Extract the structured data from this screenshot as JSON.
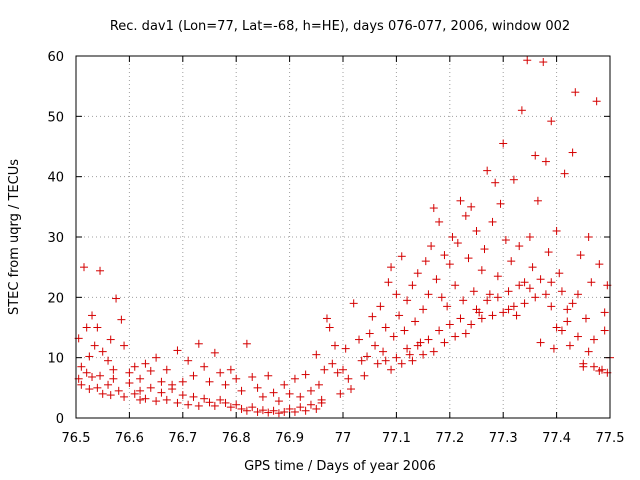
{
  "chart_data": {
    "type": "scatter",
    "title": "Rec. dav1 (Lon=77, Lat=-68, h=HE), days 076-077, 2006, window 002",
    "xlabel": "GPS time / Days of year 2006",
    "ylabel": "STEC from uqrg / TECUs",
    "xlim": [
      76.5,
      77.5
    ],
    "ylim": [
      0,
      60
    ],
    "xticks": [
      "76.5",
      "76.6",
      "76.7",
      "76.8",
      "76.9",
      "77",
      "77.1",
      "77.2",
      "77.3",
      "77.4",
      "77.5"
    ],
    "yticks": [
      "0",
      "10",
      "20",
      "30",
      "40",
      "50",
      "60"
    ],
    "grid": true,
    "marker": "plus",
    "color": "#d40000",
    "points": [
      [
        76.505,
        13.2
      ],
      [
        76.51,
        8.5
      ],
      [
        76.515,
        25.0
      ],
      [
        76.52,
        15.0
      ],
      [
        76.525,
        10.2
      ],
      [
        76.53,
        17.0
      ],
      [
        76.535,
        12.0
      ],
      [
        76.54,
        15.0
      ],
      [
        76.545,
        24.4
      ],
      [
        76.55,
        11.0
      ],
      [
        76.56,
        9.5
      ],
      [
        76.565,
        13.0
      ],
      [
        76.57,
        8.0
      ],
      [
        76.575,
        19.8
      ],
      [
        76.585,
        16.3
      ],
      [
        76.59,
        12.0
      ],
      [
        76.505,
        6.5
      ],
      [
        76.51,
        5.5
      ],
      [
        76.52,
        7.5
      ],
      [
        76.525,
        4.8
      ],
      [
        76.53,
        6.8
      ],
      [
        76.54,
        5.0
      ],
      [
        76.545,
        7.0
      ],
      [
        76.55,
        4.0
      ],
      [
        76.56,
        5.5
      ],
      [
        76.565,
        3.8
      ],
      [
        76.57,
        6.5
      ],
      [
        76.58,
        4.5
      ],
      [
        76.59,
        3.5
      ],
      [
        76.6,
        5.8
      ],
      [
        76.61,
        4.0
      ],
      [
        76.62,
        3.0
      ],
      [
        76.6,
        7.5
      ],
      [
        76.61,
        8.5
      ],
      [
        76.62,
        6.5
      ],
      [
        76.63,
        9.0
      ],
      [
        76.64,
        7.8
      ],
      [
        76.65,
        10.0
      ],
      [
        76.66,
        6.0
      ],
      [
        76.67,
        8.0
      ],
      [
        76.68,
        5.5
      ],
      [
        76.69,
        11.2
      ],
      [
        76.7,
        6.0
      ],
      [
        76.71,
        9.5
      ],
      [
        76.72,
        7.0
      ],
      [
        76.73,
        12.3
      ],
      [
        76.74,
        8.5
      ],
      [
        76.75,
        6.0
      ],
      [
        76.62,
        4.5
      ],
      [
        76.63,
        3.2
      ],
      [
        76.64,
        5.0
      ],
      [
        76.65,
        2.8
      ],
      [
        76.66,
        4.2
      ],
      [
        76.67,
        3.0
      ],
      [
        76.68,
        4.8
      ],
      [
        76.69,
        2.5
      ],
      [
        76.7,
        3.8
      ],
      [
        76.71,
        2.2
      ],
      [
        76.72,
        3.5
      ],
      [
        76.73,
        2.0
      ],
      [
        76.74,
        3.2
      ],
      [
        76.75,
        2.6
      ],
      [
        76.76,
        2.0
      ],
      [
        76.77,
        3.0
      ],
      [
        76.76,
        10.8
      ],
      [
        76.77,
        7.5
      ],
      [
        76.78,
        5.5
      ],
      [
        76.79,
        8.0
      ],
      [
        76.8,
        6.5
      ],
      [
        76.81,
        4.5
      ],
      [
        76.82,
        12.3
      ],
      [
        76.83,
        6.8
      ],
      [
        76.84,
        5.0
      ],
      [
        76.85,
        3.5
      ],
      [
        76.86,
        7.0
      ],
      [
        76.87,
        4.2
      ],
      [
        76.88,
        2.8
      ],
      [
        76.89,
        5.5
      ],
      [
        76.9,
        4.0
      ],
      [
        76.91,
        6.5
      ],
      [
        76.78,
        2.5
      ],
      [
        76.79,
        1.8
      ],
      [
        76.8,
        2.2
      ],
      [
        76.81,
        1.5
      ],
      [
        76.82,
        1.2
      ],
      [
        76.83,
        1.8
      ],
      [
        76.84,
        1.0
      ],
      [
        76.85,
        1.3
      ],
      [
        76.86,
        0.9
      ],
      [
        76.87,
        1.2
      ],
      [
        76.88,
        0.8
      ],
      [
        76.89,
        1.0
      ],
      [
        76.9,
        1.5
      ],
      [
        76.91,
        1.0
      ],
      [
        76.92,
        1.8
      ],
      [
        76.93,
        1.2
      ],
      [
        76.92,
        3.5
      ],
      [
        76.93,
        7.2
      ],
      [
        76.94,
        4.5
      ],
      [
        76.95,
        10.5
      ],
      [
        76.955,
        5.5
      ],
      [
        76.96,
        3.0
      ],
      [
        76.965,
        8.0
      ],
      [
        76.97,
        16.5
      ],
      [
        76.975,
        15.0
      ],
      [
        76.98,
        9.0
      ],
      [
        76.985,
        12.0
      ],
      [
        76.99,
        7.5
      ],
      [
        76.995,
        4.0
      ],
      [
        76.94,
        2.2
      ],
      [
        76.95,
        1.5
      ],
      [
        76.96,
        2.5
      ],
      [
        77.0,
        8.0
      ],
      [
        77.005,
        11.5
      ],
      [
        77.01,
        6.5
      ],
      [
        77.015,
        4.8
      ],
      [
        77.02,
        19.0
      ],
      [
        77.03,
        13.0
      ],
      [
        77.035,
        9.5
      ],
      [
        77.04,
        7.0
      ],
      [
        77.045,
        10.2
      ],
      [
        77.05,
        14.0
      ],
      [
        77.055,
        16.8
      ],
      [
        77.06,
        12.0
      ],
      [
        77.065,
        9.0
      ],
      [
        77.07,
        18.5
      ],
      [
        77.075,
        11.0
      ],
      [
        77.08,
        15.0
      ],
      [
        77.085,
        22.5
      ],
      [
        77.09,
        25.0
      ],
      [
        77.095,
        13.5
      ],
      [
        77.1,
        20.5
      ],
      [
        77.105,
        17.0
      ],
      [
        77.11,
        26.8
      ],
      [
        77.115,
        14.5
      ],
      [
        77.12,
        19.5
      ],
      [
        77.125,
        10.5
      ],
      [
        77.13,
        22.0
      ],
      [
        77.135,
        16.0
      ],
      [
        77.14,
        24.0
      ],
      [
        77.145,
        12.5
      ],
      [
        77.15,
        18.0
      ],
      [
        77.155,
        26.0
      ],
      [
        77.16,
        20.5
      ],
      [
        77.08,
        9.5
      ],
      [
        77.09,
        8.0
      ],
      [
        77.1,
        10.0
      ],
      [
        77.11,
        9.0
      ],
      [
        77.12,
        11.5
      ],
      [
        77.13,
        9.5
      ],
      [
        77.14,
        12.0
      ],
      [
        77.15,
        10.5
      ],
      [
        77.16,
        13.0
      ],
      [
        77.17,
        11.0
      ],
      [
        77.18,
        14.5
      ],
      [
        77.19,
        12.5
      ],
      [
        77.2,
        15.5
      ],
      [
        77.21,
        13.5
      ],
      [
        77.22,
        16.5
      ],
      [
        77.23,
        14.0
      ],
      [
        77.165,
        28.5
      ],
      [
        77.17,
        34.8
      ],
      [
        77.175,
        23.0
      ],
      [
        77.18,
        32.5
      ],
      [
        77.185,
        20.0
      ],
      [
        77.19,
        27.0
      ],
      [
        77.195,
        18.5
      ],
      [
        77.2,
        25.5
      ],
      [
        77.205,
        30.0
      ],
      [
        77.21,
        22.0
      ],
      [
        77.215,
        29.0
      ],
      [
        77.22,
        36.0
      ],
      [
        77.225,
        19.5
      ],
      [
        77.23,
        33.5
      ],
      [
        77.235,
        26.5
      ],
      [
        77.24,
        35.0
      ],
      [
        77.245,
        21.0
      ],
      [
        77.25,
        31.0
      ],
      [
        77.255,
        17.5
      ],
      [
        77.26,
        24.5
      ],
      [
        77.265,
        28.0
      ],
      [
        77.27,
        41.0
      ],
      [
        77.275,
        20.5
      ],
      [
        77.28,
        32.5
      ],
      [
        77.285,
        39.0
      ],
      [
        77.29,
        23.5
      ],
      [
        77.295,
        35.5
      ],
      [
        77.3,
        45.5
      ],
      [
        77.305,
        29.5
      ],
      [
        77.31,
        18.0
      ],
      [
        77.315,
        26.0
      ],
      [
        77.32,
        39.5
      ],
      [
        77.24,
        15.5
      ],
      [
        77.25,
        18.0
      ],
      [
        77.26,
        16.5
      ],
      [
        77.27,
        19.5
      ],
      [
        77.28,
        17.0
      ],
      [
        77.29,
        20.0
      ],
      [
        77.3,
        17.5
      ],
      [
        77.31,
        21.0
      ],
      [
        77.32,
        18.5
      ],
      [
        77.33,
        22.0
      ],
      [
        77.34,
        19.0
      ],
      [
        77.35,
        21.5
      ],
      [
        77.36,
        20.0
      ],
      [
        77.37,
        23.0
      ],
      [
        77.38,
        20.5
      ],
      [
        77.39,
        22.5
      ],
      [
        77.325,
        17.0
      ],
      [
        77.33,
        28.5
      ],
      [
        77.335,
        51.0
      ],
      [
        77.34,
        22.5
      ],
      [
        77.345,
        59.3
      ],
      [
        77.35,
        30.0
      ],
      [
        77.355,
        25.0
      ],
      [
        77.36,
        43.5
      ],
      [
        77.365,
        36.0
      ],
      [
        77.37,
        12.5
      ],
      [
        77.375,
        59.0
      ],
      [
        77.38,
        42.5
      ],
      [
        77.385,
        27.5
      ],
      [
        77.39,
        49.2
      ],
      [
        77.395,
        11.5
      ],
      [
        77.4,
        31.0
      ],
      [
        77.405,
        24.0
      ],
      [
        77.41,
        14.5
      ],
      [
        77.415,
        40.5
      ],
      [
        77.42,
        18.0
      ],
      [
        77.425,
        12.0
      ],
      [
        77.43,
        44.0
      ],
      [
        77.435,
        54.0
      ],
      [
        77.44,
        20.5
      ],
      [
        77.445,
        27.0
      ],
      [
        77.45,
        9.0
      ],
      [
        77.455,
        16.5
      ],
      [
        77.46,
        30.0
      ],
      [
        77.465,
        22.5
      ],
      [
        77.47,
        13.0
      ],
      [
        77.475,
        52.5
      ],
      [
        77.48,
        25.5
      ],
      [
        77.485,
        8.0
      ],
      [
        77.49,
        14.5
      ],
      [
        77.495,
        7.5
      ],
      [
        77.5,
        10.0
      ],
      [
        77.495,
        22.0
      ],
      [
        77.49,
        17.5
      ],
      [
        77.48,
        7.8
      ],
      [
        77.47,
        8.5
      ],
      [
        77.46,
        11.0
      ],
      [
        77.45,
        8.5
      ],
      [
        77.44,
        13.5
      ],
      [
        77.43,
        19.0
      ],
      [
        77.42,
        16.0
      ],
      [
        77.41,
        21.0
      ],
      [
        77.4,
        15.0
      ],
      [
        77.39,
        18.5
      ]
    ]
  }
}
